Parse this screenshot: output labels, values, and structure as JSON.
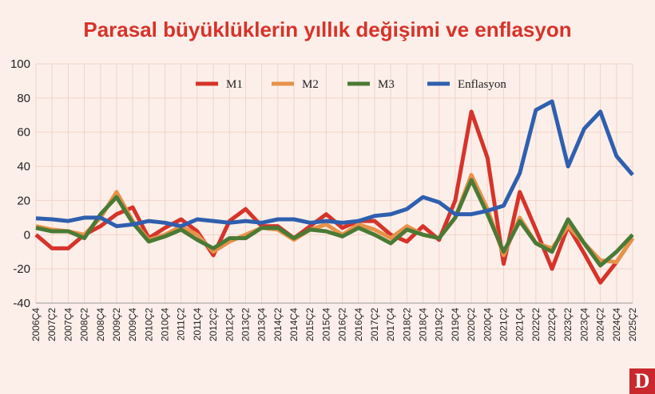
{
  "chart_data": {
    "type": "line",
    "title": "Parasal büyüklüklerin yıllık değişimi ve enflasyon",
    "logo": "D",
    "categories": [
      "2006Ç4",
      "2007Ç2",
      "2007Ç4",
      "2008Ç2",
      "2008Ç4",
      "2009Ç2",
      "2009Ç4",
      "2010Ç2",
      "2010Ç4",
      "2011Ç2",
      "2011Ç4",
      "2012Ç2",
      "2012Ç4",
      "2013Ç2",
      "2013Ç4",
      "2014Ç2",
      "2014Ç4",
      "2015Ç2",
      "2015Ç4",
      "2016Ç2",
      "2016Ç4",
      "2017Ç2",
      "2017Ç4",
      "2018Ç2",
      "2018Ç4",
      "2019Ç2",
      "2019Ç4",
      "2020Ç2",
      "2020Ç4",
      "2021Ç2",
      "2021Ç4",
      "2022Ç2",
      "2022Ç4",
      "2023Ç2",
      "2023Ç4",
      "2024Ç2",
      "2024Ç4",
      "2025Ç2"
    ],
    "series": [
      {
        "name": "M1",
        "color": "#d6332a",
        "values": [
          0,
          -8,
          -8,
          0,
          5,
          12,
          16,
          -2,
          4,
          9,
          2,
          -12,
          8,
          15,
          5,
          5,
          -2,
          5,
          12,
          4,
          8,
          8,
          0,
          -4,
          5,
          -3,
          20,
          72,
          45,
          -17,
          25,
          3,
          -20,
          5,
          -11,
          -28,
          -16,
          -2
        ]
      },
      {
        "name": "M2",
        "color": "#e8914a",
        "values": [
          5,
          3,
          2,
          0,
          10,
          25,
          8,
          -3,
          0,
          5,
          0,
          -10,
          -4,
          0,
          4,
          3,
          -3,
          3,
          6,
          0,
          6,
          3,
          -2,
          5,
          0,
          -2,
          10,
          35,
          15,
          -12,
          10,
          -5,
          -8,
          5,
          -5,
          -15,
          -16,
          -2
        ]
      },
      {
        "name": "M3",
        "color": "#4a7a35",
        "values": [
          4,
          2,
          2,
          -2,
          12,
          22,
          7,
          -4,
          -1,
          3,
          -3,
          -8,
          -2,
          -2,
          4,
          4,
          -2,
          3,
          2,
          -1,
          4,
          0,
          -5,
          3,
          0,
          -2,
          10,
          32,
          12,
          -10,
          8,
          -5,
          -10,
          9,
          -5,
          -18,
          -10,
          0
        ]
      },
      {
        "name": "Enflasyon",
        "color": "#2f5fae",
        "values": [
          9.6,
          9,
          8,
          10,
          10,
          5,
          6,
          8,
          7,
          5,
          9,
          8,
          7,
          8,
          7,
          9,
          9,
          7,
          8,
          7,
          8,
          11,
          12,
          15,
          22,
          19,
          12,
          12,
          14,
          17,
          36,
          73,
          78,
          40,
          62,
          72,
          46,
          35
        ]
      }
    ],
    "ylim": [
      -40,
      100
    ],
    "yticks": [
      -40,
      -20,
      0,
      20,
      40,
      60,
      80,
      100
    ],
    "grid": true,
    "legend": "top"
  }
}
